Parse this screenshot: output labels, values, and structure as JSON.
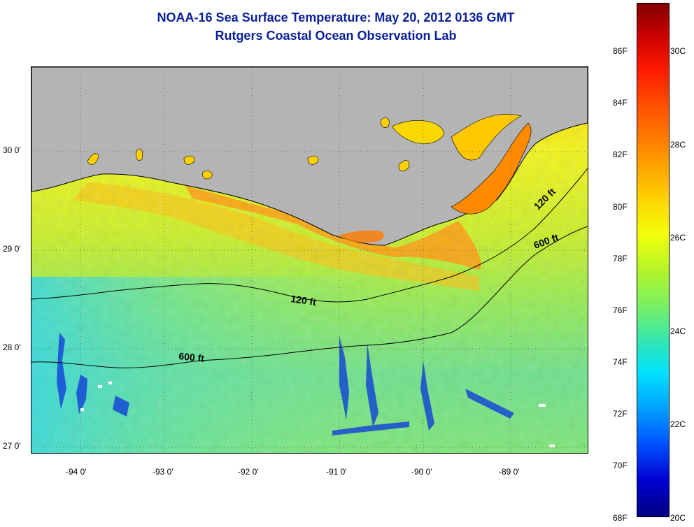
{
  "title": {
    "line1": "NOAA-16 Sea Surface Temperature:  May 20, 2012 0136 GMT",
    "line2": "Rutgers Coastal Ocean Observation Lab"
  },
  "map": {
    "lat_labels": [
      "30 0'",
      "29 0'",
      "28 0'",
      "27 0'"
    ],
    "lon_labels": [
      "-94 0'",
      "-93 0'",
      "-92 0'",
      "-91 0'",
      "-90 0'",
      "-89 0'"
    ],
    "contour_labels": {
      "c120_west": "120 ft",
      "c120_east": "120 ft",
      "c600_west": "600 ft",
      "c600_east": "600 ft"
    },
    "colors": {
      "land": "#b4b4b4",
      "contour": "#000000",
      "gridline": "#505050"
    }
  },
  "colorbar": {
    "fahrenheit_labels": [
      "86F",
      "84F",
      "82F",
      "80F",
      "78F",
      "76F",
      "74F",
      "72F",
      "70F",
      "68F"
    ],
    "celsius_labels": [
      "30C",
      "28C",
      "26C",
      "24C",
      "22C",
      "20C"
    ]
  }
}
